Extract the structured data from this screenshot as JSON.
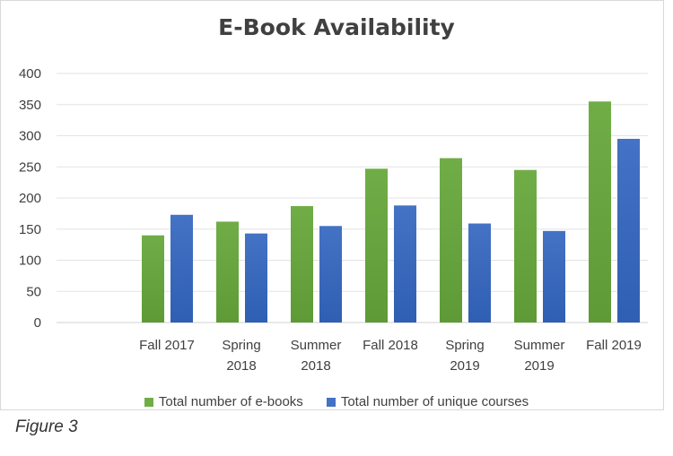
{
  "chart_data": {
    "type": "bar",
    "title": "E-Book Availability",
    "categories": [
      [
        "Fall 2017"
      ],
      [
        "Spring",
        "2018"
      ],
      [
        "Summer",
        "2018"
      ],
      [
        "Fall 2018"
      ],
      [
        "Spring",
        "2019"
      ],
      [
        "Summer",
        "2019"
      ],
      [
        "Fall 2019"
      ]
    ],
    "series": [
      {
        "name": "Total number of e-books",
        "values": [
          140,
          162,
          187,
          247,
          264,
          245,
          355
        ],
        "color": "#70ad47"
      },
      {
        "name": "Total number of unique courses",
        "values": [
          173,
          143,
          155,
          188,
          159,
          147,
          295
        ],
        "color": "#4472c4"
      }
    ],
    "ylim": [
      0,
      400
    ],
    "yticks": [
      0,
      50,
      100,
      150,
      200,
      250,
      300,
      350,
      400
    ],
    "grid": true,
    "legend_position": "bottom"
  },
  "caption": "Figure 3"
}
